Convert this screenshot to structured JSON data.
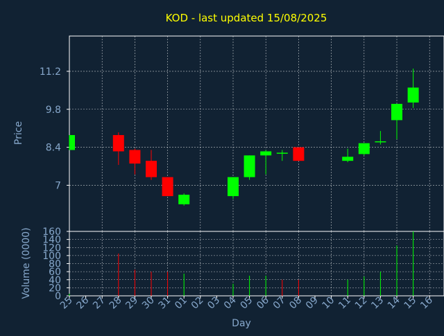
{
  "title": "KOD - last updated 15/08/2025",
  "colors": {
    "background": "#112233",
    "title": "#ffff00",
    "axis_text": "#87a8cc",
    "frame": "#ffffff",
    "grid": "#ffffff",
    "up": "#00ff00",
    "down": "#ff0000"
  },
  "chart_data": [
    {
      "type": "candlestick",
      "ylabel": "Price",
      "xlabel": "",
      "yticks": [
        7,
        8.4,
        9.8,
        11.2
      ],
      "ylim": [
        5.3,
        12.5
      ],
      "grid": true,
      "categories": [
        "25",
        "26",
        "27",
        "28",
        "29",
        "30",
        "31",
        "01",
        "02",
        "03",
        "04",
        "05",
        "06",
        "07",
        "08",
        "09",
        "10",
        "11",
        "12",
        "13",
        "14",
        "15",
        "16"
      ],
      "candles": [
        {
          "day": "25",
          "open": 8.3,
          "close": 8.85,
          "high": 8.85,
          "low": 8.3
        },
        {
          "day": "28",
          "open": 8.85,
          "close": 8.25,
          "high": 8.95,
          "low": 7.75
        },
        {
          "day": "29",
          "open": 8.3,
          "close": 7.8,
          "high": 8.35,
          "low": 7.4
        },
        {
          "day": "30",
          "open": 7.9,
          "close": 7.3,
          "high": 8.3,
          "low": 7.2
        },
        {
          "day": "31",
          "open": 7.3,
          "close": 6.6,
          "high": 7.3,
          "low": 6.6
        },
        {
          "day": "01",
          "open": 6.3,
          "close": 6.65,
          "high": 6.7,
          "low": 6.25
        },
        {
          "day": "04",
          "open": 6.6,
          "close": 7.3,
          "high": 7.3,
          "low": 6.5
        },
        {
          "day": "05",
          "open": 7.3,
          "close": 8.1,
          "high": 8.1,
          "low": 7.2
        },
        {
          "day": "06",
          "open": 8.1,
          "close": 8.25,
          "high": 8.3,
          "low": 7.4
        },
        {
          "day": "07",
          "open": 8.2,
          "close": 8.2,
          "high": 8.3,
          "low": 7.9
        },
        {
          "day": "08",
          "open": 8.4,
          "close": 7.9,
          "high": 8.4,
          "low": 7.9
        },
        {
          "day": "11",
          "open": 7.9,
          "close": 8.05,
          "high": 8.35,
          "low": 7.85
        },
        {
          "day": "12",
          "open": 8.15,
          "close": 8.55,
          "high": 8.55,
          "low": 8.1
        },
        {
          "day": "13",
          "open": 8.6,
          "close": 8.62,
          "high": 9.0,
          "low": 8.5
        },
        {
          "day": "14",
          "open": 9.4,
          "close": 10.0,
          "high": 10.0,
          "low": 8.7
        },
        {
          "day": "15",
          "open": 10.05,
          "close": 10.6,
          "high": 11.3,
          "low": 9.85
        }
      ]
    },
    {
      "type": "bar",
      "ylabel": "Volume (0000)",
      "xlabel": "Day",
      "yticks": [
        0,
        20,
        40,
        60,
        80,
        100,
        120,
        140,
        160
      ],
      "ylim": [
        0,
        160
      ],
      "grid": true,
      "categories": [
        "25",
        "26",
        "27",
        "28",
        "29",
        "30",
        "31",
        "01",
        "02",
        "03",
        "04",
        "05",
        "06",
        "07",
        "08",
        "09",
        "10",
        "11",
        "12",
        "13",
        "14",
        "15",
        "16"
      ],
      "bars": [
        {
          "day": "25",
          "value": 5,
          "dir": "up"
        },
        {
          "day": "28",
          "value": 105,
          "dir": "down"
        },
        {
          "day": "29",
          "value": 65,
          "dir": "down"
        },
        {
          "day": "30",
          "value": 60,
          "dir": "down"
        },
        {
          "day": "31",
          "value": 60,
          "dir": "down"
        },
        {
          "day": "01",
          "value": 55,
          "dir": "up"
        },
        {
          "day": "04",
          "value": 30,
          "dir": "up"
        },
        {
          "day": "05",
          "value": 50,
          "dir": "up"
        },
        {
          "day": "06",
          "value": 50,
          "dir": "up"
        },
        {
          "day": "07",
          "value": 40,
          "dir": "down"
        },
        {
          "day": "08",
          "value": 40,
          "dir": "down"
        },
        {
          "day": "11",
          "value": 40,
          "dir": "up"
        },
        {
          "day": "12",
          "value": 48,
          "dir": "up"
        },
        {
          "day": "13",
          "value": 60,
          "dir": "up"
        },
        {
          "day": "14",
          "value": 125,
          "dir": "up"
        },
        {
          "day": "15",
          "value": 160,
          "dir": "up"
        }
      ]
    }
  ]
}
